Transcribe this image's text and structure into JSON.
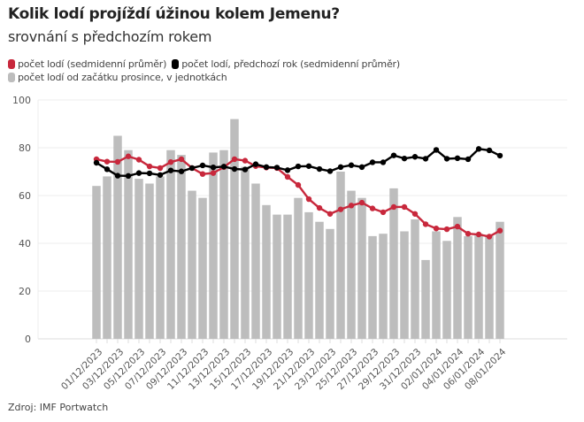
{
  "header": {
    "title": "Kolik lodí projíždí úžinou kolem Jemenu?",
    "subtitle": "srovnání s předchozím rokem"
  },
  "legend": [
    {
      "label": "počet lodí (sedmidenní průměr)",
      "color": "#c8283c"
    },
    {
      "label": "počet lodí, předchozí rok (sedmidenní průměr)",
      "color": "#000000"
    },
    {
      "label": "počet lodí od začátku prosince, v jednotkách",
      "color": "#bdbdbd"
    }
  ],
  "footer": {
    "source": "Zdroj: IMF Portwatch"
  },
  "chart_data": {
    "type": "bar+line",
    "title": "Kolik lodí projíždí úžinou kolem Jemenu?",
    "subtitle": "srovnání s předchozím rokem",
    "xlabel": "",
    "ylabel": "",
    "ylim": [
      0,
      100
    ],
    "yticks": [
      0,
      20,
      40,
      60,
      80,
      100
    ],
    "grid": true,
    "legend_position": "top-left",
    "x": [
      "01/12/2023",
      "02/12/2023",
      "03/12/2023",
      "04/12/2023",
      "05/12/2023",
      "06/12/2023",
      "07/12/2023",
      "08/12/2023",
      "09/12/2023",
      "10/12/2023",
      "11/12/2023",
      "12/12/2023",
      "13/12/2023",
      "14/12/2023",
      "15/12/2023",
      "16/12/2023",
      "17/12/2023",
      "18/12/2023",
      "19/12/2023",
      "20/12/2023",
      "21/12/2023",
      "22/12/2023",
      "23/12/2023",
      "24/12/2023",
      "25/12/2023",
      "26/12/2023",
      "27/12/2023",
      "28/12/2023",
      "29/12/2023",
      "30/12/2023",
      "31/12/2023",
      "01/01/2024",
      "02/01/2024",
      "03/01/2024",
      "04/01/2024",
      "05/01/2024",
      "06/01/2024",
      "07/01/2024",
      "08/01/2024"
    ],
    "xtick_labels": [
      "01/12/2023",
      "03/12/2023",
      "05/12/2023",
      "07/12/2023",
      "09/12/2023",
      "11/12/2023",
      "13/12/2023",
      "15/12/2023",
      "17/12/2023",
      "19/12/2023",
      "21/12/2023",
      "23/12/2023",
      "25/12/2023",
      "27/12/2023",
      "29/12/2023",
      "31/12/2023",
      "02/01/2024",
      "04/01/2024",
      "06/01/2024",
      "08/01/2024"
    ],
    "series": [
      {
        "name": "počet lodí od začátku prosince, v jednotkách",
        "type": "bar",
        "color": "#bdbdbd",
        "values": [
          64,
          68,
          85,
          79,
          67,
          65,
          68,
          79,
          77,
          62,
          59,
          78,
          79,
          92,
          72,
          65,
          56,
          52,
          52,
          59,
          53,
          49,
          46,
          70,
          62,
          59,
          43,
          44,
          63,
          45,
          50,
          33,
          45,
          41,
          51,
          43,
          44,
          43,
          49
        ]
      },
      {
        "name": "počet lodí (sedmidenní průměr)",
        "type": "line",
        "color": "#c8283c",
        "values": [
          75.2,
          74.2,
          74.1,
          76.4,
          75,
          72.2,
          71.5,
          74,
          75.2,
          71.5,
          69,
          69.4,
          71.9,
          75.2,
          74.6,
          72.3,
          71.7,
          71.5,
          67.8,
          64.4,
          58.5,
          54.8,
          52.3,
          54.2,
          55.8,
          57,
          54.6,
          53,
          55.2,
          55.2,
          52.3,
          48,
          46.2,
          45.9,
          47,
          44,
          43.7,
          42.8,
          45.3
        ]
      },
      {
        "name": "počet lodí, předchozí rok (sedmidenní průměr)",
        "type": "line",
        "color": "#000000",
        "values": [
          73.7,
          71,
          68.3,
          68.2,
          69.4,
          69.3,
          68.6,
          70.5,
          70.1,
          71.5,
          72.6,
          71.8,
          72.1,
          71.1,
          70.9,
          73.1,
          71.9,
          71.7,
          70.6,
          72.2,
          72.3,
          71.1,
          70.2,
          71.9,
          72.7,
          71.9,
          73.9,
          73.9,
          76.8,
          75.5,
          76.2,
          75.4,
          79.1,
          75.4,
          75.6,
          75.2,
          79.5,
          78.9,
          76.7
        ]
      }
    ]
  }
}
